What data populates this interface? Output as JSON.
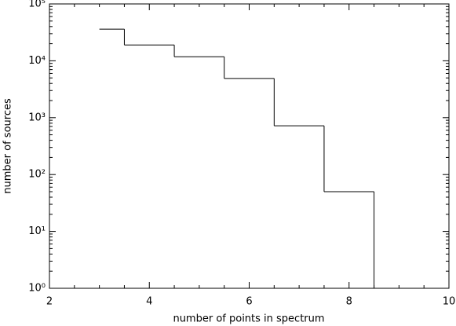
{
  "chart_data": {
    "type": "histogram",
    "xlabel": "number of points in spectrum",
    "ylabel": "number of sources",
    "bins": [
      3,
      3.5,
      4.5,
      5.5,
      6.5,
      7.5,
      8.5,
      9
    ],
    "values": [
      36000,
      19000,
      11800,
      4900,
      720,
      50,
      1
    ],
    "color": "#000000",
    "xlim": [
      2,
      10
    ],
    "xticks": [
      2,
      4,
      6,
      8,
      10
    ],
    "ylim": [
      1,
      100000
    ],
    "yscale": "log",
    "yticks": [
      {
        "value": 1,
        "label": "10⁰"
      },
      {
        "value": 10,
        "label": "10¹"
      },
      {
        "value": 100,
        "label": "10²"
      },
      {
        "value": 1000,
        "label": "10³"
      },
      {
        "value": 10000,
        "label": "10⁴"
      },
      {
        "value": 100000,
        "label": "10⁵"
      }
    ]
  }
}
